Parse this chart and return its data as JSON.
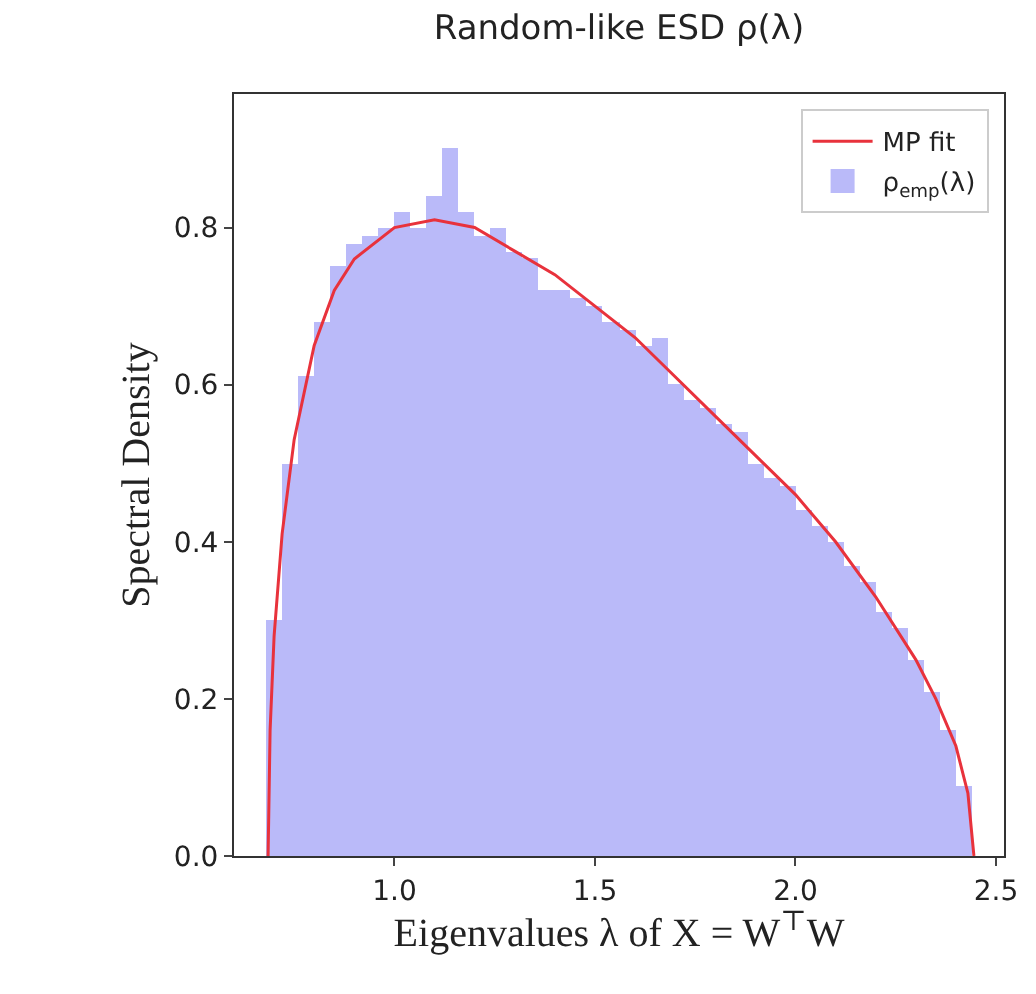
{
  "chart_data": {
    "type": "histogram",
    "title": "Random-like ESD ρ(λ)",
    "xlabel": "Eigenvalues λ of X = W$^{⊤}$W",
    "ylabel": "Spectral Density",
    "xlim": [
      0.6,
      2.52
    ],
    "xticks": [
      {
        "value": 1,
        "label": "1.0"
      },
      1.5,
      {
        "value": 2,
        "label": "2.0"
      },
      2.5
    ],
    "ylim": [
      0,
      0.97
    ],
    "yticks": [
      {
        "value": 0,
        "label": "0.0"
      },
      0.2,
      0.4,
      0.6,
      0.8
    ],
    "grid": false,
    "legend": "top right",
    "series": [
      {
        "name": "MP fit",
        "type": "line",
        "color": "#e8323c",
        "line_style": "solid",
        "marker": "none",
        "x": [
          0.685,
          0.69,
          0.7,
          0.72,
          0.75,
          0.8,
          0.85,
          0.9,
          1.0,
          1.1,
          1.2,
          1.3,
          1.4,
          1.5,
          1.6,
          1.7,
          1.8,
          1.9,
          2.0,
          2.1,
          2.2,
          2.3,
          2.35,
          2.4,
          2.43,
          2.445
        ],
        "values": [
          0,
          0.16,
          0.28,
          0.41,
          0.53,
          0.65,
          0.72,
          0.76,
          0.8,
          0.81,
          0.8,
          0.77,
          0.74,
          0.7,
          0.66,
          0.61,
          0.56,
          0.51,
          0.46,
          0.4,
          0.33,
          0.25,
          0.2,
          0.14,
          0.08,
          0
        ]
      },
      {
        "name": "ρ$_{emp}$(λ)",
        "color": "#babaf9",
        "bins": [
          0.68,
          0.72,
          0.76,
          0.8,
          0.84,
          0.88,
          0.92,
          0.96,
          1.0,
          1.04,
          1.08,
          1.12,
          1.16,
          1.2,
          1.24,
          1.28,
          1.32,
          1.36,
          1.4,
          1.44,
          1.48,
          1.52,
          1.56,
          1.6,
          1.64,
          1.68,
          1.72,
          1.76,
          1.8,
          1.84,
          1.88,
          1.92,
          1.96,
          2.0,
          2.04,
          2.08,
          2.12,
          2.16,
          2.2,
          2.24,
          2.28,
          2.32,
          2.36,
          2.4,
          2.44
        ],
        "values": [
          0.3,
          0.5,
          0.61,
          0.68,
          0.75,
          0.78,
          0.79,
          0.8,
          0.82,
          0.8,
          0.84,
          0.9,
          0.82,
          0.79,
          0.8,
          0.77,
          0.76,
          0.72,
          0.72,
          0.71,
          0.7,
          0.68,
          0.67,
          0.65,
          0.66,
          0.6,
          0.58,
          0.57,
          0.55,
          0.54,
          0.5,
          0.48,
          0.47,
          0.44,
          0.42,
          0.4,
          0.37,
          0.35,
          0.31,
          0.29,
          0.25,
          0.21,
          0.16,
          0.09
        ]
      }
    ]
  }
}
